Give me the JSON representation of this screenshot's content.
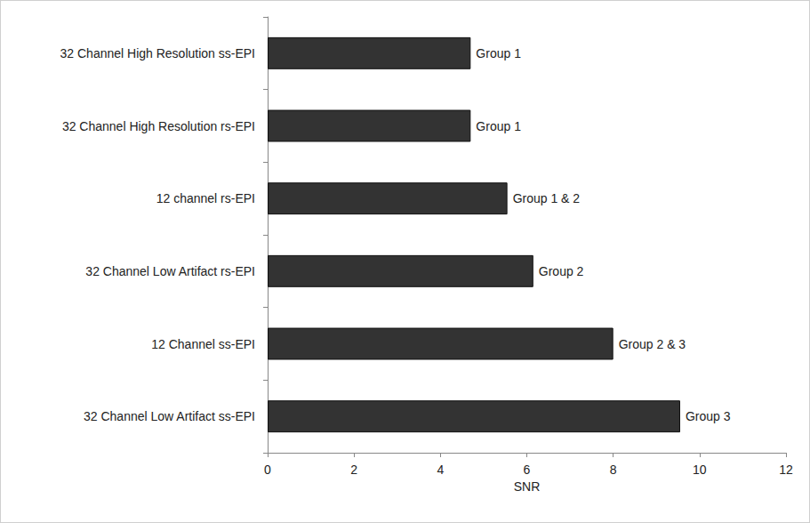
{
  "chart_data": {
    "type": "bar",
    "orientation": "horizontal",
    "categories": [
      "32 Channel High Resolution ss-EPI",
      "32 Channel High Resolution rs-EPI",
      "12 channel rs-EPI",
      "32 Channel Low Artifact rs-EPI",
      "12 Channel ss-EPI",
      "32 Channel Low Artifact ss-EPI"
    ],
    "values": [
      4.7,
      4.7,
      5.55,
      6.15,
      8.0,
      9.55
    ],
    "annotations": [
      "Group 1",
      "Group 1",
      "Group 1 & 2",
      "Group 2",
      "Group 2 & 3",
      "Group 3"
    ],
    "xlabel": "SNR",
    "xlim": [
      0,
      12
    ],
    "xticks": [
      0,
      2,
      4,
      6,
      8,
      10,
      12
    ],
    "color": "#333333",
    "grid": false
  }
}
